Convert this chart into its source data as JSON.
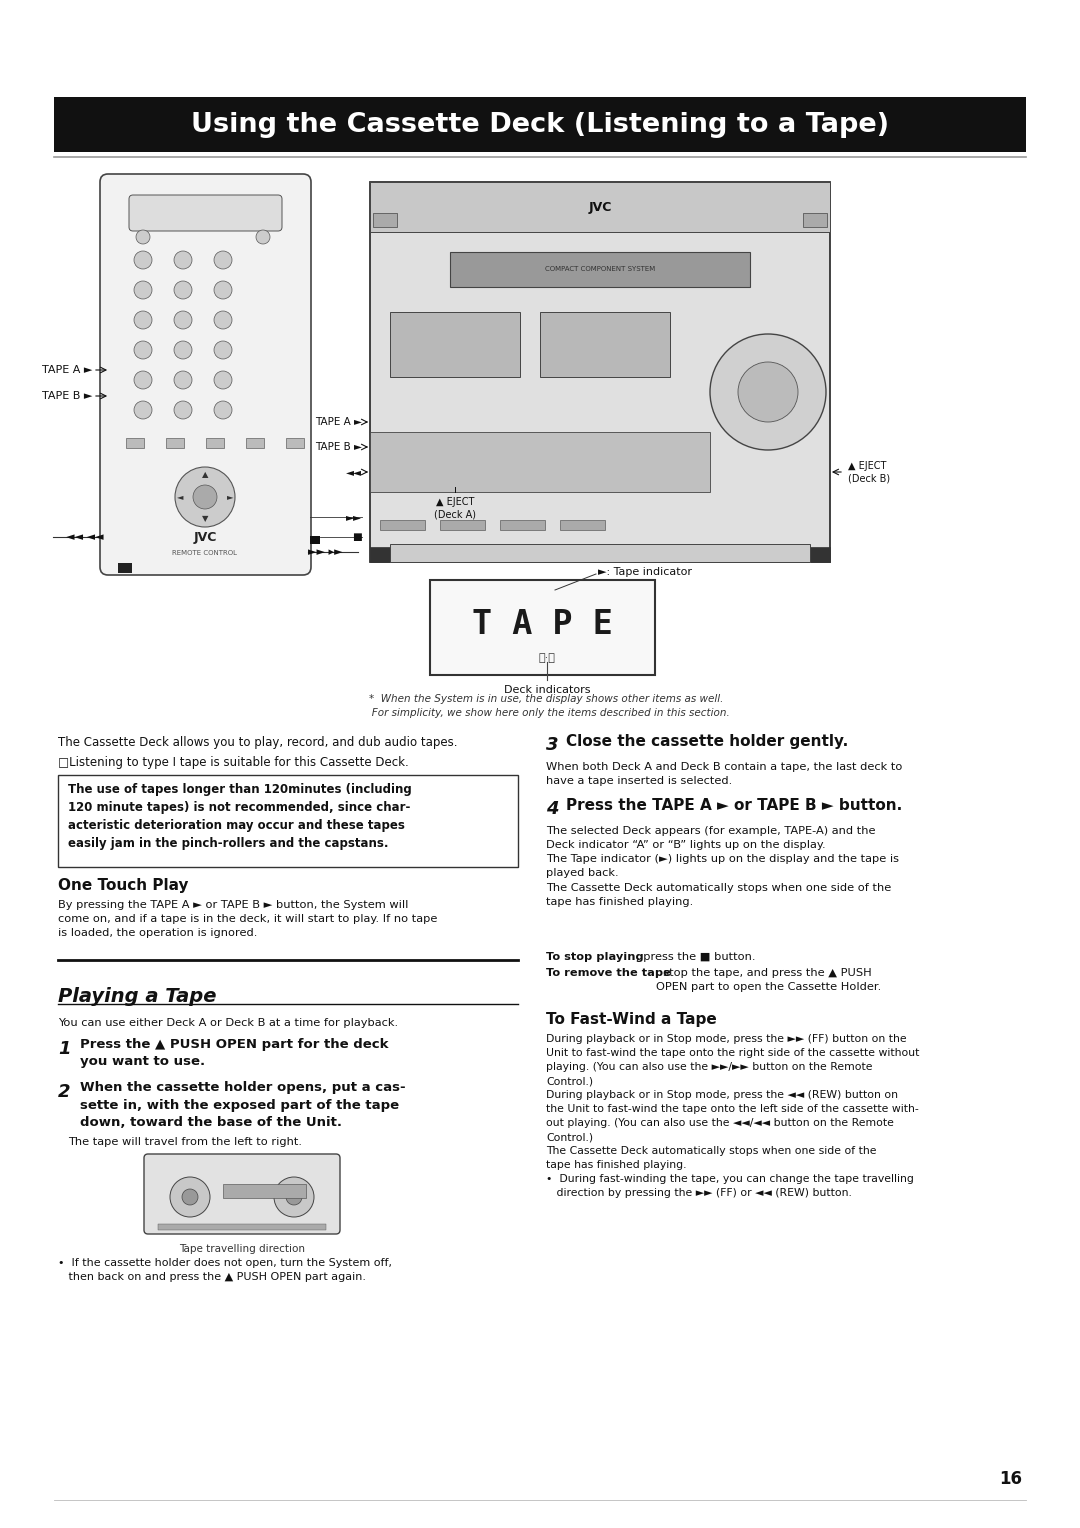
{
  "page_bg": "#ffffff",
  "page_width": 10.8,
  "page_height": 15.28,
  "dpi": 100,
  "title_bar_color": "#111111",
  "title_text": "Using the Cassette Deck (Listening to a Tape)",
  "title_text_color": "#ffffff",
  "warning_box_text": "The use of tapes longer than 120minutes (including\n120 minute tapes) is not recommended, since char-\nacteristic deterioration may occur and these tapes\neasily jam in the pinch-rollers and the capstans.",
  "one_touch_play_title": "One Touch Play",
  "one_touch_play_text": "By pressing the TAPE A ► or TAPE B ► button, the System will\ncome on, and if a tape is in the deck, it will start to play. If no tape\nis loaded, the operation is ignored.",
  "playing_tape_title": "Playing a Tape",
  "playing_tape_intro": "You can use either Deck A or Deck B at a time for playback.",
  "step1_text": "Press the ▲ PUSH OPEN part for the deck\nyou want to use.",
  "step2_text": "When the cassette holder opens, put a cas-\nsette in, with the exposed part of the tape\ndown, toward the base of the Unit.",
  "step2_sub": "The tape will travel from the left to right.",
  "step2_note": "•  If the cassette holder does not open, turn the System off,\n   then back on and press the ▲ PUSH OPEN part again.",
  "tape_direction_label": "Tape travelling direction",
  "step3_bold": "Close the cassette holder gently.",
  "step3_text": "When both Deck A and Deck B contain a tape, the last deck to\nhave a tape inserted is selected.",
  "step4_bold": "Press the TAPE A ► or TAPE B ► button.",
  "step4_text": "The selected Deck appears (for example, TAPE-A) and the\nDeck indicator “A” or “B” lights up on the display.\nThe Tape indicator (►) lights up on the display and the tape is\nplayed back.\nThe Cassette Deck automatically stops when one side of the\ntape has finished playing.",
  "stop_bold1": "To stop playing",
  "stop_text1": ", press the ■ button.",
  "stop_bold2": "To remove the tape",
  "stop_text2": ", stop the tape, and press the ▲ PUSH\nOPEN part to open the Cassette Holder.",
  "fast_wind_title": "To Fast-Wind a Tape",
  "fast_wind_text": "During playback or in Stop mode, press the ►► (FF) button on the\nUnit to fast-wind the tape onto the right side of the cassette without\nplaying. (You can also use the ►►/►► button on the Remote\nControl.)\nDuring playback or in Stop mode, press the ◄◄ (REW) button on\nthe Unit to fast-wind the tape onto the left side of the cassette with-\nout playing. (You can also use the ◄◄/◄◄ button on the Remote\nControl.)\nThe Cassette Deck automatically stops when one side of the\ntape has finished playing.\n•  During fast-winding the tape, you can change the tape travelling\n   direction by pressing the ►► (FF) or ◄◄ (REW) button.",
  "page_number": "16",
  "footnote_text": "*  When the System is in use, the display shows other items as well.\n   For simplicity, we show here only the items described in this section.",
  "tape_a_label_remote": "TAPE A ►",
  "tape_b_label_remote": "TAPE B ►",
  "tape_a_label_unit": "TAPE A ►",
  "tape_b_label_unit": "TAPE B ►",
  "rewind_label_unit": "◄◄",
  "eject_deck_a_label": "▲ EJECT\n(Deck A)",
  "eject_deck_b_label": "▲ EJECT\n(Deck B)",
  "ff_label_unit": "►►",
  "stop_label_unit": "■",
  "tape_indicator_label": "►: Tape indicator",
  "deck_indicators_label": "Deck indicators",
  "intro_line1": "The Cassette Deck allows you to play, record, and dub audio tapes.",
  "intro_line2": "□Listening to type I tape is suitable for this Cassette Deck."
}
